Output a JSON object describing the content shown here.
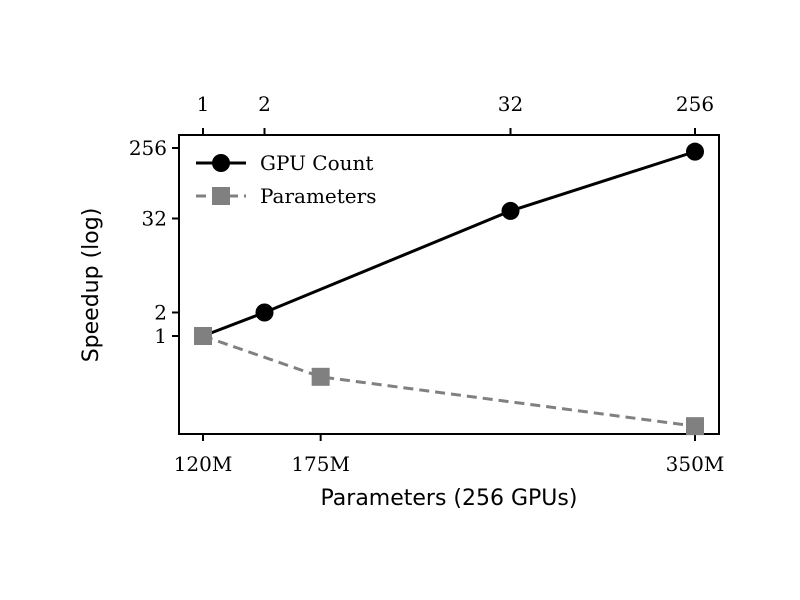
{
  "chart_data": {
    "type": "line",
    "xlabel": "Parameters (256 GPUs)",
    "ylabel": "Speedup (log)",
    "y_scale": "log2",
    "bottom_x_ticks": [
      "120M",
      "175M",
      "350M"
    ],
    "top_x_ticks": [
      "1",
      "2",
      "32",
      "256"
    ],
    "y_ticks": [
      "1",
      "2",
      "32",
      "256"
    ],
    "legend_position": "upper-left",
    "series": [
      {
        "name": "GPU Count",
        "axis": "top",
        "style": "solid",
        "marker": "circle",
        "color": "#000000",
        "x": [
          1,
          2,
          32,
          256
        ],
        "y": [
          1,
          2,
          40,
          230
        ]
      },
      {
        "name": "Parameters",
        "axis": "bottom",
        "style": "dashed",
        "marker": "square",
        "color": "#808080",
        "x": [
          "120M",
          "175M",
          "350M"
        ],
        "y": [
          1,
          0.3,
          0.07
        ]
      }
    ]
  }
}
